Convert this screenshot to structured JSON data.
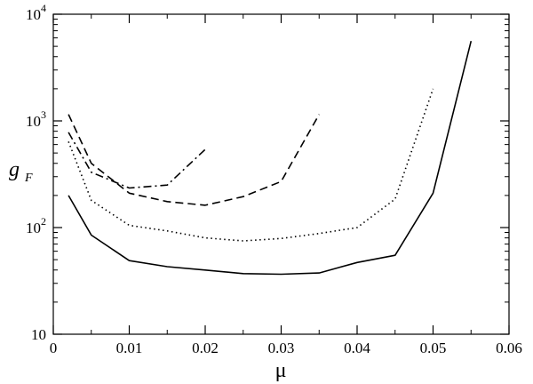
{
  "chart_data": {
    "type": "line",
    "xlabel": "μ",
    "ylabel": {
      "main": "g",
      "sub": "F"
    },
    "xlim": [
      0,
      0.06
    ],
    "ylim": [
      10,
      10000
    ],
    "yscale": "log",
    "xticks": [
      {
        "value": 0,
        "label": "0"
      },
      {
        "value": 0.01,
        "label": "0.01"
      },
      {
        "value": 0.02,
        "label": "0.02"
      },
      {
        "value": 0.03,
        "label": "0.03"
      },
      {
        "value": 0.04,
        "label": "0.04"
      },
      {
        "value": 0.05,
        "label": "0.05"
      },
      {
        "value": 0.06,
        "label": "0.06"
      }
    ],
    "yticks": [
      {
        "value": 10,
        "base": "10",
        "exp": ""
      },
      {
        "value": 100,
        "base": "10",
        "exp": "2"
      },
      {
        "value": 1000,
        "base": "10",
        "exp": "3"
      },
      {
        "value": 10000,
        "base": "10",
        "exp": "4"
      }
    ],
    "grid": false,
    "legend": "none",
    "series": [
      {
        "style": "solid",
        "color": "#000000",
        "x": [
          0.002,
          0.005,
          0.01,
          0.015,
          0.02,
          0.025,
          0.03,
          0.035,
          0.04,
          0.045,
          0.05,
          0.055
        ],
        "y": [
          200,
          85,
          49,
          43,
          40,
          37,
          36.5,
          37.5,
          47,
          55,
          210,
          5600
        ]
      },
      {
        "style": "dotted",
        "color": "#000000",
        "x": [
          0.002,
          0.005,
          0.01,
          0.015,
          0.02,
          0.025,
          0.03,
          0.035,
          0.04,
          0.045,
          0.05
        ],
        "y": [
          640,
          180,
          105,
          93,
          80,
          75,
          79,
          88,
          100,
          185,
          2000
        ]
      },
      {
        "style": "dashed",
        "color": "#000000",
        "x": [
          0.002,
          0.005,
          0.01,
          0.015,
          0.02,
          0.025,
          0.03,
          0.035
        ],
        "y": [
          1150,
          400,
          210,
          175,
          162,
          195,
          270,
          1150
        ]
      },
      {
        "style": "dashdot",
        "color": "#000000",
        "x": [
          0.002,
          0.005,
          0.01,
          0.015,
          0.02
        ],
        "y": [
          780,
          330,
          235,
          250,
          540
        ]
      }
    ]
  }
}
